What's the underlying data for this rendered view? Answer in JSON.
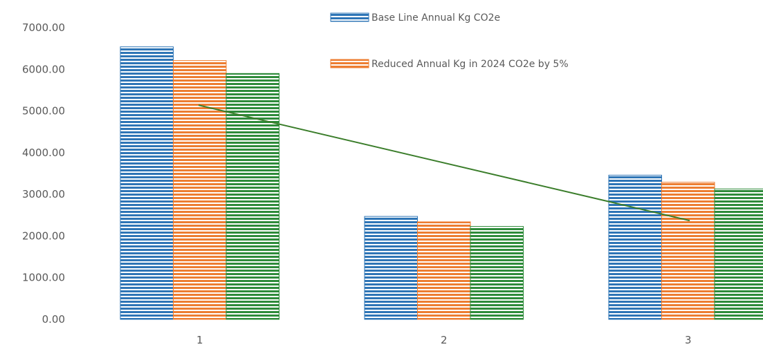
{
  "chart_data": {
    "type": "bar",
    "categories": [
      "1",
      "2",
      "3"
    ],
    "series": [
      {
        "name": "Base Line Annual Kg CO2e",
        "color": "#2e75b6",
        "values": [
          6540,
          2470,
          3460
        ]
      },
      {
        "name": "Reduced Annual Kg in 2024 CO2e by 5%",
        "color": "#ed7d31",
        "values": [
          6210,
          2340,
          3290
        ]
      },
      {
        "name": "",
        "color": "#2e8b3a",
        "values": [
          5900,
          2230,
          3130
        ]
      }
    ],
    "trendline": {
      "type": "linear",
      "color": "#3a7d2a",
      "values": [
        5140,
        2370
      ]
    },
    "y_ticks": [
      "0.00",
      "1000.00",
      "2000.00",
      "3000.00",
      "4000.00",
      "5000.00",
      "6000.00",
      "7000.00"
    ],
    "ylim": [
      0,
      7000
    ],
    "legend_position": "top-center",
    "grid": false,
    "bar_pattern": "horizontal-stripes"
  }
}
